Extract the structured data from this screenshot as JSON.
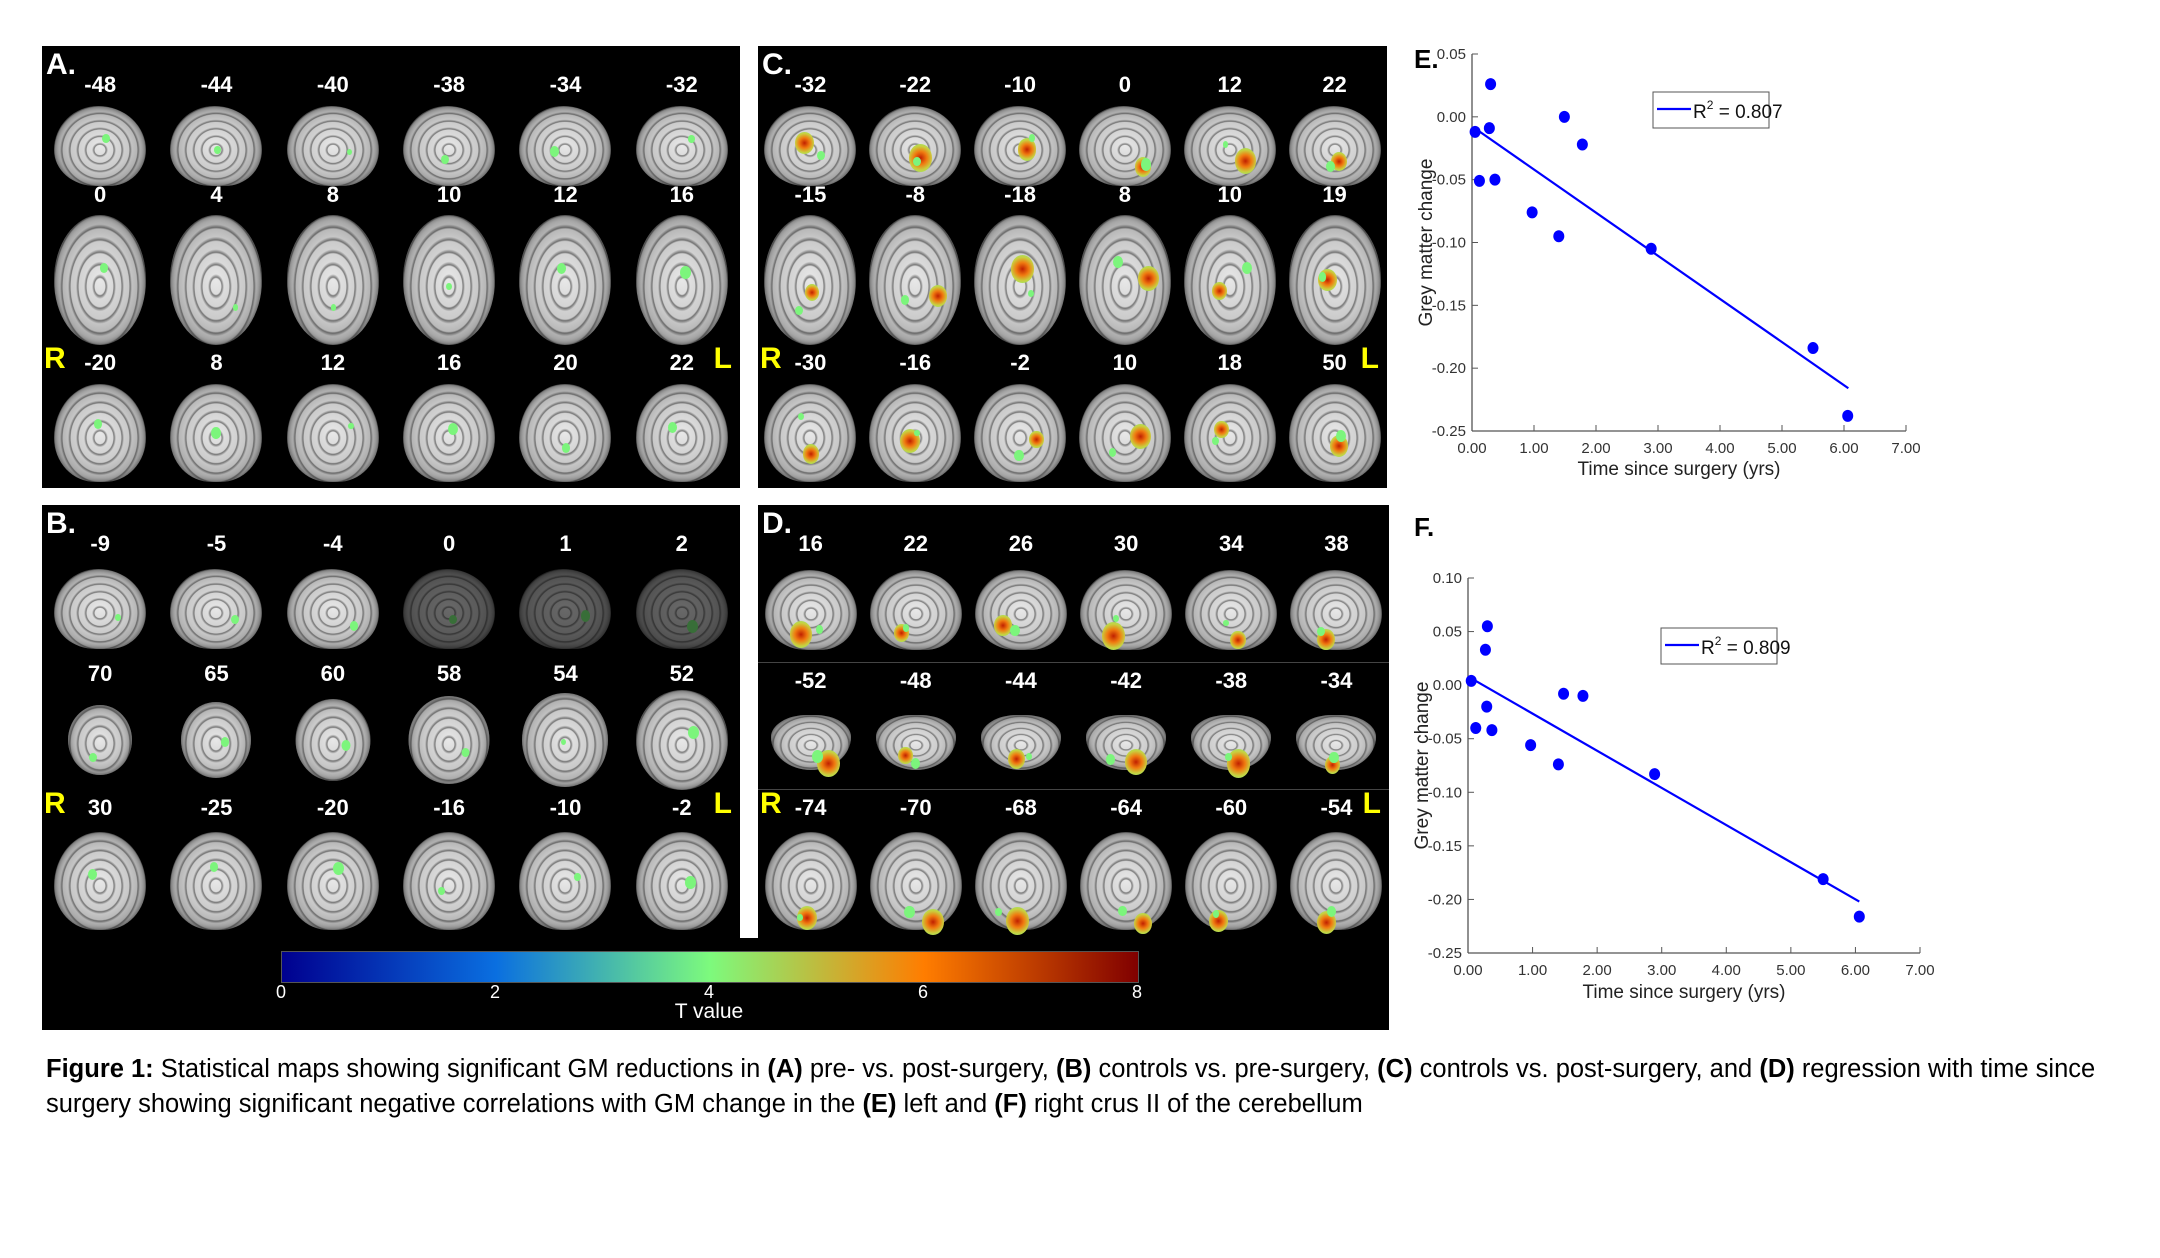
{
  "panels": [
    {
      "id": "A",
      "letter": "A.",
      "R": "R",
      "L": "L",
      "rows": [
        {
          "type": "sagittal",
          "slices": [
            "-48",
            "-44",
            "-40",
            "-38",
            "-34",
            "-32"
          ]
        },
        {
          "type": "axial",
          "slices": [
            "0",
            "4",
            "8",
            "10",
            "12",
            "16"
          ]
        },
        {
          "type": "coronal",
          "slices": [
            "-20",
            "8",
            "12",
            "16",
            "20",
            "22"
          ]
        }
      ]
    },
    {
      "id": "C",
      "letter": "C.",
      "R": "R",
      "L": "L",
      "rows": [
        {
          "type": "sagittal",
          "slices": [
            "-32",
            "-22",
            "-10",
            "0",
            "12",
            "22"
          ]
        },
        {
          "type": "axial",
          "slices": [
            "-15",
            "-8",
            "-18",
            "8",
            "10",
            "19"
          ]
        },
        {
          "type": "coronal",
          "slices": [
            "-30",
            "-16",
            "-2",
            "10",
            "18",
            "50"
          ]
        }
      ]
    },
    {
      "id": "B",
      "letter": "B.",
      "R": "R",
      "L": "L",
      "rows": [
        {
          "type": "sagittal",
          "slices": [
            "-9",
            "-5",
            "-4",
            "0",
            "1",
            "2"
          ]
        },
        {
          "type": "axial",
          "slices": [
            "70",
            "65",
            "60",
            "58",
            "54",
            "52"
          ]
        },
        {
          "type": "coronal",
          "slices": [
            "30",
            "-25",
            "-20",
            "-16",
            "-10",
            "-2"
          ]
        }
      ]
    },
    {
      "id": "D",
      "letter": "D.",
      "R": "R",
      "L": "L",
      "rows": [
        {
          "type": "sagittal",
          "slices": [
            "16",
            "22",
            "26",
            "30",
            "34",
            "38"
          ]
        },
        {
          "type": "cerebellum",
          "slices": [
            "-52",
            "-48",
            "-44",
            "-42",
            "-38",
            "-34"
          ]
        },
        {
          "type": "coronal",
          "slices": [
            "-74",
            "-70",
            "-68",
            "-64",
            "-60",
            "-54"
          ]
        }
      ]
    }
  ],
  "overlay_colors": {
    "low": "#7cf57c",
    "mid": "#c8d040",
    "high": "#f07a10",
    "peak": "#c02000"
  },
  "colorbar": {
    "ticks": [
      "0",
      "2",
      "4",
      "6",
      "8"
    ],
    "label": "T value"
  },
  "chart_data": [
    {
      "type": "scatter",
      "panel": "E.",
      "xlabel": "Time since surgery (yrs)",
      "ylabel": "Grey matter change",
      "xlim": [
        0,
        7
      ],
      "ylim": [
        -0.25,
        0.05
      ],
      "xticks": [
        "0.00",
        "1.00",
        "2.00",
        "3.00",
        "4.00",
        "5.00",
        "6.00",
        "7.00"
      ],
      "yticks": [
        "0.05",
        "0.00",
        "-0.05",
        "-0.10",
        "-0.15",
        "-0.20",
        "-0.25"
      ],
      "points": [
        [
          0.05,
          -0.012
        ],
        [
          0.3,
          0.026
        ],
        [
          0.28,
          -0.009
        ],
        [
          0.12,
          -0.051
        ],
        [
          0.37,
          -0.05
        ],
        [
          0.97,
          -0.076
        ],
        [
          1.4,
          -0.095
        ],
        [
          1.49,
          0.0
        ],
        [
          1.78,
          -0.022
        ],
        [
          2.89,
          -0.105
        ],
        [
          5.5,
          -0.184
        ],
        [
          6.06,
          -0.238
        ]
      ],
      "fit_line": [
        [
          0.1,
          -0.011
        ],
        [
          6.07,
          -0.216
        ]
      ],
      "legend": {
        "base": "R",
        "sup": "2",
        "value": " = 0.807"
      },
      "color": "#0000ff"
    },
    {
      "type": "scatter",
      "panel": "F.",
      "xlabel": "Time since surgery (yrs)",
      "ylabel": "Grey matter change",
      "xlim": [
        0,
        7
      ],
      "ylim": [
        -0.25,
        0.1
      ],
      "xticks": [
        "0.00",
        "1.00",
        "2.00",
        "3.00",
        "4.00",
        "5.00",
        "6.00",
        "7.00"
      ],
      "yticks": [
        "0.10",
        "0.05",
        "0.00",
        "-0.05",
        "-0.10",
        "-0.15",
        "-0.20",
        "-0.25"
      ],
      "points": [
        [
          0.05,
          0.004
        ],
        [
          0.3,
          0.055
        ],
        [
          0.27,
          0.033
        ],
        [
          0.29,
          -0.02
        ],
        [
          0.12,
          -0.04
        ],
        [
          0.37,
          -0.042
        ],
        [
          0.97,
          -0.056
        ],
        [
          1.4,
          -0.074
        ],
        [
          1.48,
          -0.008
        ],
        [
          1.78,
          -0.01
        ],
        [
          2.89,
          -0.083
        ],
        [
          5.5,
          -0.181
        ],
        [
          6.06,
          -0.216
        ]
      ],
      "fit_line": [
        [
          0.06,
          0.006
        ],
        [
          6.06,
          -0.202
        ]
      ],
      "legend": {
        "base": "R",
        "sup": "2",
        "value": " = 0.809"
      },
      "color": "#0000ff"
    }
  ],
  "caption": {
    "segments": [
      {
        "text": "Figure 1:",
        "bold": true
      },
      {
        "text": " Statistical maps showing significant GM reductions in ",
        "bold": false
      },
      {
        "text": "(A)",
        "bold": true
      },
      {
        "text": " pre- vs. post-surgery, ",
        "bold": false
      },
      {
        "text": "(B)",
        "bold": true
      },
      {
        "text": " controls vs. pre-surgery, ",
        "bold": false
      },
      {
        "text": "(C)",
        "bold": true
      },
      {
        "text": " controls vs. post-surgery, and ",
        "bold": false
      },
      {
        "text": "(D)",
        "bold": true
      },
      {
        "text": " regression with time since surgery showing significant negative correlations with GM change in the ",
        "bold": false
      },
      {
        "text": "(E)",
        "bold": true
      },
      {
        "text": " left and ",
        "bold": false
      },
      {
        "text": "(F)",
        "bold": true
      },
      {
        "text": " right crus II of the cerebellum",
        "bold": false
      }
    ]
  }
}
